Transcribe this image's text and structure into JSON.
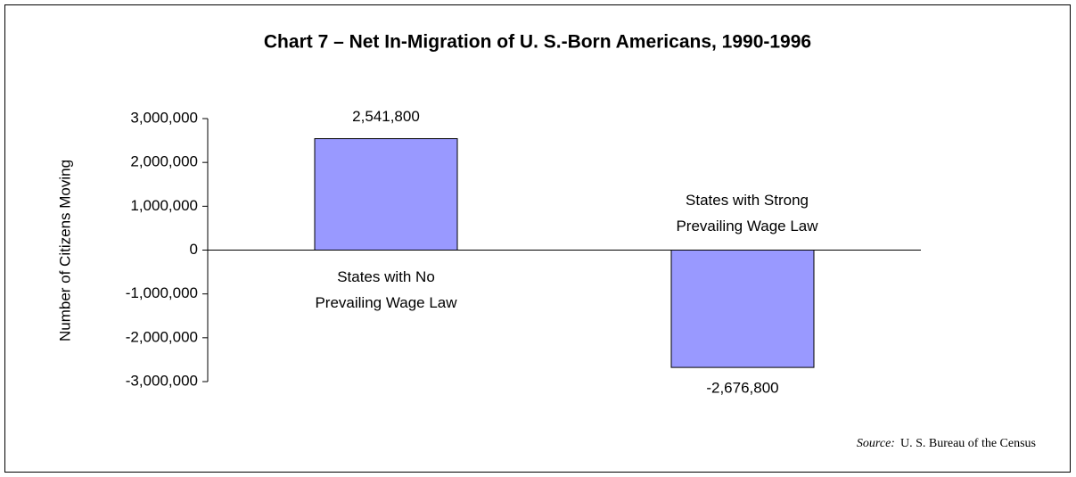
{
  "chart_data": {
    "type": "bar",
    "title": "Chart 7 – Net In-Migration of U. S.-Born Americans, 1990-1996",
    "ylabel": "Number of Citizens Moving",
    "categories": [
      [
        "States with No",
        "Prevailing Wage Law"
      ],
      [
        "States with Strong",
        "Prevailing Wage Law"
      ]
    ],
    "values": [
      2541800,
      -2676800
    ],
    "value_labels": [
      "2,541,800",
      "-2,676,800"
    ],
    "color": "#9999ff",
    "ylim": [
      -3000000,
      3000000
    ],
    "yticks": [
      {
        "value": -3000000,
        "label": "-3,000,000"
      },
      {
        "value": -2000000,
        "label": "-2,000,000"
      },
      {
        "value": -1000000,
        "label": "-1,000,000"
      },
      0,
      {
        "value": 1000000,
        "label": "1,000,000"
      },
      {
        "value": 2000000,
        "label": "2,000,000"
      },
      {
        "value": 3000000,
        "label": "3,000,000"
      }
    ],
    "grid": false,
    "source": {
      "label": "Source:",
      "text": "U. S. Bureau of the Census"
    }
  }
}
